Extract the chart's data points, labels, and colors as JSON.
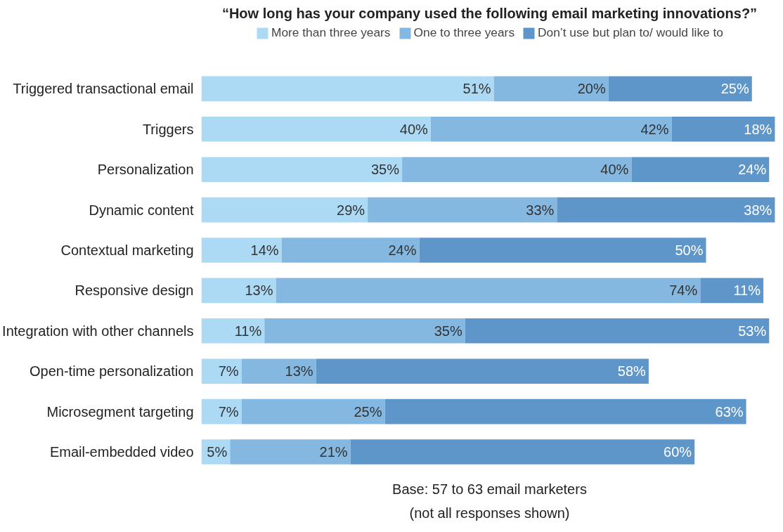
{
  "chart_data": {
    "type": "bar",
    "orientation": "horizontal",
    "stacked": true,
    "title": "“How long has your company used the following email marketing innovations?”",
    "categories": [
      "Triggered transactional email",
      "Triggers",
      "Personalization",
      "Dynamic content",
      "Contextual marketing",
      "Responsive design",
      "Integration with other channels",
      "Open-time personalization",
      "Microsegment targeting",
      "Email-embedded video"
    ],
    "series": [
      {
        "name": "More than three years",
        "color": "#acdaf4",
        "values": [
          51,
          40,
          35,
          29,
          14,
          13,
          11,
          7,
          7,
          5
        ],
        "value_labels": [
          "51%",
          "40%",
          "35%",
          "29%",
          "14%",
          "13%",
          "11%",
          "7%",
          "7%",
          "5%"
        ]
      },
      {
        "name": "One to three years",
        "color": "#84b8e0",
        "values": [
          20,
          42,
          40,
          33,
          24,
          74,
          35,
          13,
          25,
          21
        ],
        "value_labels": [
          "20%",
          "42%",
          "40%",
          "33%",
          "24%",
          "74%",
          "35%",
          "13%",
          "25%",
          "21%"
        ]
      },
      {
        "name": "Don’t use but plan to/ would like to",
        "color": "#5e96c9",
        "values": [
          25,
          18,
          24,
          38,
          50,
          11,
          53,
          58,
          63,
          60
        ],
        "value_labels": [
          "25%",
          "18%",
          "24%",
          "38%",
          "50%",
          "11%",
          "53%",
          "58%",
          "63%",
          "60%"
        ]
      }
    ],
    "legend": "top",
    "grid": false,
    "tick_labels": "y",
    "annotations": [
      "Base: 57 to 63 email marketers",
      "(not all responses shown)"
    ]
  }
}
